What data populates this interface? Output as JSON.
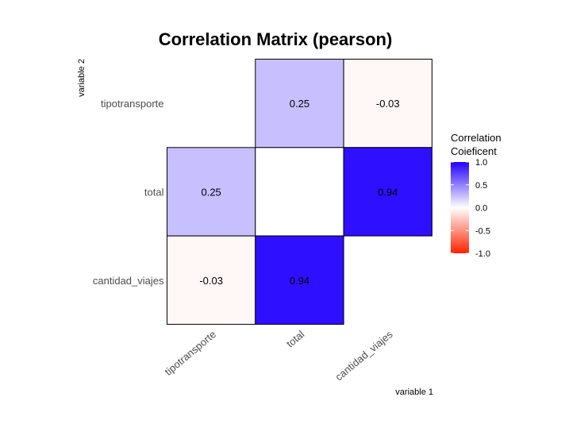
{
  "chart_data": {
    "type": "heatmap",
    "title": "Correlation Matrix (pearson)",
    "xlabel": "variable 1",
    "ylabel": "variable 2",
    "x_categories": [
      "tipotransporte",
      "total",
      "cantidad_viajes"
    ],
    "y_categories": [
      "cantidad_viajes",
      "total",
      "tipotransporte"
    ],
    "cells": [
      {
        "x": "total",
        "y": "tipotransporte",
        "value": 0.25,
        "label": "0.25"
      },
      {
        "x": "cantidad_viajes",
        "y": "tipotransporte",
        "value": -0.03,
        "label": "-0.03"
      },
      {
        "x": "tipotransporte",
        "y": "total",
        "value": 0.25,
        "label": "0.25"
      },
      {
        "x": "total",
        "y": "total",
        "value": null,
        "label": ""
      },
      {
        "x": "cantidad_viajes",
        "y": "total",
        "value": 0.94,
        "label": "0.94"
      },
      {
        "x": "tipotransporte",
        "y": "cantidad_viajes",
        "value": -0.03,
        "label": "-0.03"
      },
      {
        "x": "total",
        "y": "cantidad_viajes",
        "value": 0.94,
        "label": "0.94"
      }
    ],
    "legend": {
      "title_lines": [
        "Correlation",
        "Coieficent"
      ],
      "ticks": [
        "1.0",
        "0.5",
        "0.0",
        "-0.5",
        "-1.0"
      ],
      "range": [
        -1,
        1
      ],
      "colors": {
        "low": "#ff2200",
        "mid": "#ffffff",
        "high": "#2200ff"
      }
    },
    "grid": false
  }
}
